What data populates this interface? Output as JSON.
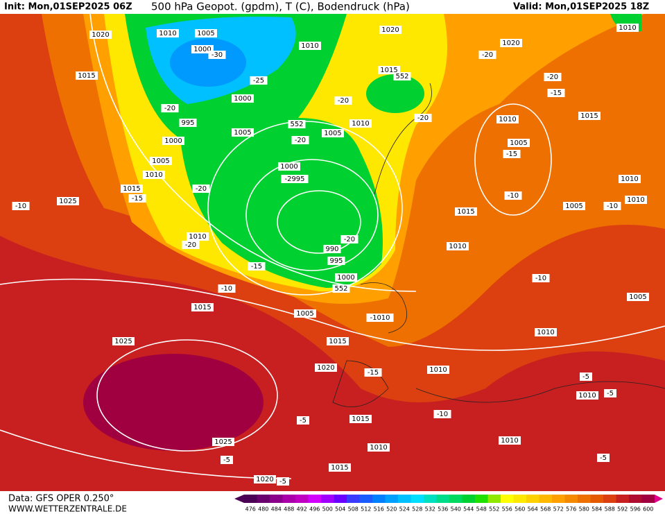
{
  "header": {
    "init": "Init: Mon,01SEP2025 06Z",
    "title": "500 hPa Geopot. (gpdm), T (C), Bodendruck (hPa)",
    "valid": "Valid: Mon,01SEP2025 18Z"
  },
  "footer": {
    "source": "Data: GFS OPER 0.250°",
    "site": "WWW.WETTERZENTRALE.DE"
  },
  "colorbar": {
    "values": [
      476,
      480,
      484,
      488,
      492,
      496,
      500,
      504,
      508,
      512,
      516,
      520,
      524,
      528,
      532,
      536,
      540,
      544,
      548,
      552,
      556,
      560,
      564,
      568,
      572,
      576,
      580,
      584,
      588,
      592,
      596,
      600
    ],
    "colors": [
      "#4b0055",
      "#6a006d",
      "#8b008b",
      "#a900a9",
      "#c000c0",
      "#d200ff",
      "#9f00ff",
      "#6a00ff",
      "#3b3bff",
      "#1a5cff",
      "#0080ff",
      "#00a0ff",
      "#00c0ff",
      "#00dfff",
      "#00e0c0",
      "#00dc8a",
      "#00d860",
      "#00d030",
      "#20e000",
      "#90e800",
      "#ffff00",
      "#ffe800",
      "#ffd000",
      "#ffb800",
      "#ffa000",
      "#f58a00",
      "#ee7000",
      "#e55a00",
      "#dc4010",
      "#c82020",
      "#b00c30",
      "#a00040"
    ]
  },
  "map": {
    "labels": [
      "1020",
      "1010",
      "1005",
      "1000",
      "-30",
      "1010",
      "1020",
      "1010",
      "-20",
      "1020",
      "1015",
      "1015",
      "552",
      "-25",
      "-20",
      "-15",
      "-20",
      "1000",
      "-20",
      "995",
      "552",
      "1010",
      "-20",
      "1015",
      "1010",
      "1005",
      "1005",
      "1000",
      "-20",
      "1005",
      "-15",
      "1005",
      "1010",
      "1000",
      "-2995",
      "-20",
      "1010",
      "1015",
      "-15",
      "-10",
      "1025",
      "-10",
      "1005",
      "-10",
      "1010",
      "1015",
      "1010",
      "-20",
      "-20",
      "1010",
      "990",
      "995",
      "-15",
      "1000",
      "552",
      "-10",
      "-10",
      "1005",
      "1015",
      "1005",
      "-1010",
      "1010",
      "1025",
      "1015",
      "1020",
      "-15",
      "1010",
      "-5",
      "1010",
      "-5",
      "-5",
      "-10",
      "1015",
      "1010",
      "1025",
      "1010",
      "-5",
      "-5",
      "1015",
      "1020",
      "-5"
    ]
  }
}
